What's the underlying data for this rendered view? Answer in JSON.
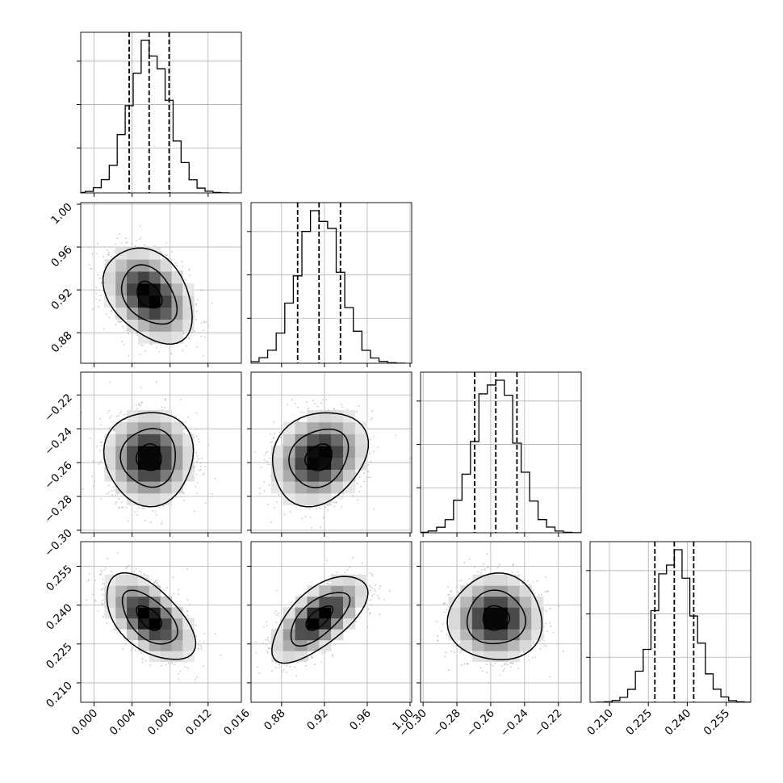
{
  "chart_data": {
    "type": "corner",
    "description_of_panels": "lower-triangle 2D density contours with scatter; diagonal 1D histograms with dashed quantile lines",
    "params": [
      {
        "ticks": [
          0.0,
          0.004,
          0.008,
          0.012,
          0.016
        ],
        "tick_labels": [
          "0.000",
          "0.004",
          "0.008",
          "0.012",
          "0.016"
        ],
        "range": [
          -0.0014,
          0.0155
        ],
        "mean": 0.0058,
        "sd": 0.0021,
        "quantiles": [
          0.0037,
          0.0058,
          0.0079
        ]
      },
      {
        "ticks": [
          0.88,
          0.92,
          0.96,
          1.0
        ],
        "tick_labels": [
          "0.88",
          "0.92",
          "0.96",
          "1.00"
        ],
        "range": [
          0.8515,
          1.0015
        ],
        "mean": 0.915,
        "sd": 0.02,
        "quantiles": [
          0.895,
          0.915,
          0.935
        ]
      },
      {
        "ticks": [
          -0.3,
          -0.28,
          -0.26,
          -0.24,
          -0.22
        ],
        "tick_labels": [
          "−0.30",
          "−0.28",
          "−0.26",
          "−0.24",
          "−0.22"
        ],
        "range": [
          -0.3015,
          -0.2065
        ],
        "mean": -0.257,
        "sd": 0.0125,
        "quantiles": [
          -0.2695,
          -0.257,
          -0.2445
        ]
      },
      {
        "ticks": [
          0.21,
          0.225,
          0.24,
          0.255
        ],
        "tick_labels": [
          "0.210",
          "0.225",
          "0.240",
          "0.255"
        ],
        "range": [
          0.2025,
          0.2645
        ],
        "mean": 0.235,
        "sd": 0.0075,
        "quantiles": [
          0.2275,
          0.235,
          0.2425
        ]
      }
    ],
    "correlations": {
      "0_1": -0.35,
      "0_2": 0.0,
      "1_2": 0.2,
      "0_3": -0.55,
      "1_3": 0.65,
      "2_3": 0.0
    },
    "histogram_bins": 20,
    "contour_levels": [
      0.39,
      0.86,
      1.39
    ],
    "colors": {
      "contour": "#000000",
      "scatter": "#9a9a9a",
      "density_dark": "#000000",
      "grid": "#b0b0b0",
      "quantile_line": "#000000"
    }
  }
}
